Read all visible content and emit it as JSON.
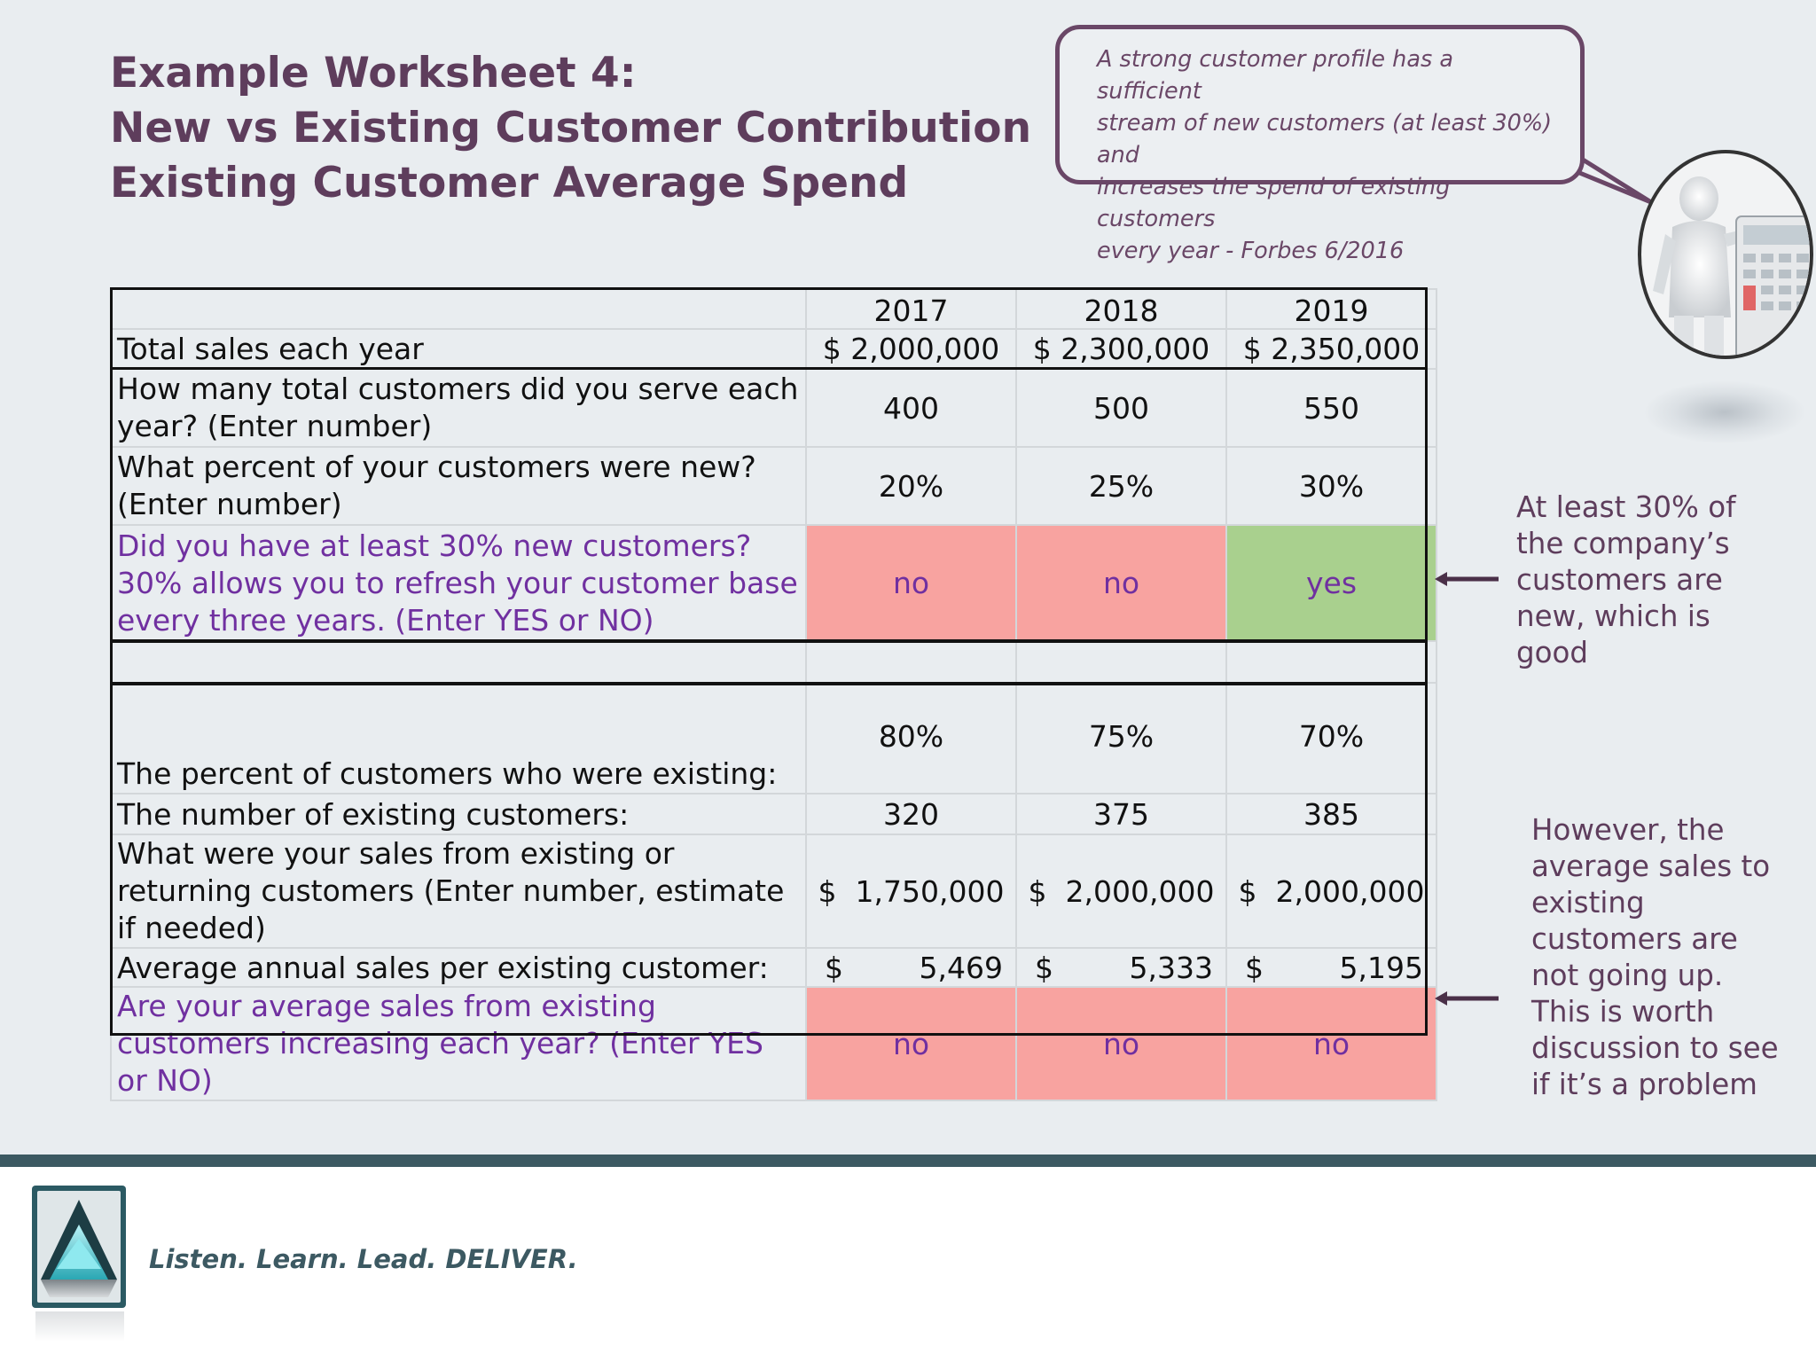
{
  "slide": {
    "title_lines": [
      "Example Worksheet 4:",
      "New vs Existing Customer Contribution",
      "Existing Customer Average Spend"
    ]
  },
  "callout": {
    "lines": [
      "A strong customer profile has a sufficient",
      "stream of new customers (at least 30%) and",
      "increases the spend of existing customers",
      "every year - Forbes 6/2016"
    ]
  },
  "table": {
    "years": [
      "2017",
      "2018",
      "2019"
    ],
    "rows": {
      "total_sales": {
        "label": "Total sales each year",
        "values": [
          "$ 2,000,000",
          "$ 2,300,000",
          "$ 2,350,000"
        ]
      },
      "total_customers": {
        "label": "How many total customers did you serve each year? (Enter number)",
        "values": [
          "400",
          "500",
          "550"
        ]
      },
      "pct_new": {
        "label": "What percent of your customers were new? (Enter number)",
        "values": [
          "20%",
          "25%",
          "30%"
        ]
      },
      "new_30": {
        "label": "Did you have at least 30% new customers?  30% allows you to refresh your customer base every three years.  (Enter YES or NO)",
        "values": [
          "no",
          "no",
          "yes"
        ]
      },
      "pct_existing": {
        "label": "The percent of customers who were existing:",
        "values": [
          "80%",
          "75%",
          "70%"
        ]
      },
      "num_existing": {
        "label": "The number of existing customers:",
        "values": [
          "320",
          "375",
          "385"
        ]
      },
      "sales_existing": {
        "label": "What were your sales from existing or returning customers (Enter number, estimate if needed)",
        "values": [
          "$  1,750,000",
          "$  2,000,000",
          "$  2,000,000"
        ]
      },
      "avg_sales": {
        "label": "Average annual sales per existing customer:",
        "currency": "$",
        "values": [
          "5,469",
          "5,333",
          "5,195"
        ]
      },
      "avg_increasing": {
        "label": "Are your average sales from existing customers increasing each year? (Enter YES or NO)",
        "values": [
          "no",
          "no",
          "no"
        ]
      }
    }
  },
  "notes": {
    "new_customers": [
      "At least 30% of",
      "the company’s",
      "customers are",
      "new, which is",
      "good"
    ],
    "avg_sales": [
      "However, the",
      "average sales to",
      "existing",
      "customers are",
      "not going up.",
      "This is worth",
      "discussion to see",
      "if it’s a problem"
    ]
  },
  "footer": {
    "tagline": "Listen. Learn. Lead. DELIVER."
  },
  "colors": {
    "title": "#5e3d5c",
    "no_cell": "#f8a3a0",
    "yes_cell": "#a9d08e",
    "question_text": "#7030a0",
    "footer_bar": "#3c5962"
  }
}
